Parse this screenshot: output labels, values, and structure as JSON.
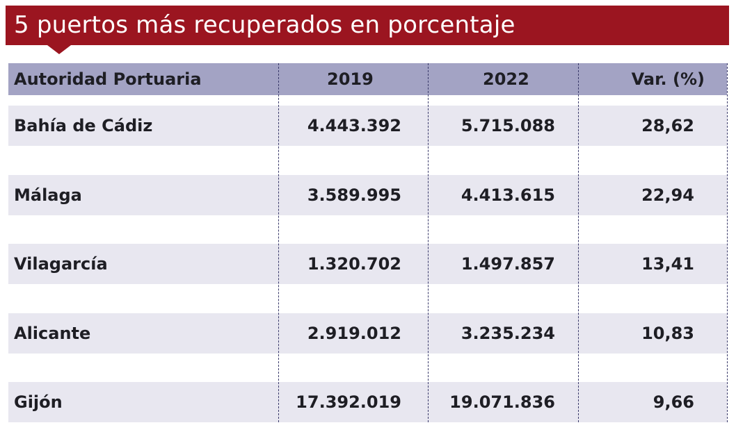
{
  "title": "5 puertos más recuperados en porcentaje",
  "colors": {
    "title_bar": "#9b1520",
    "header_bg": "#a3a3c4",
    "row_bg": "#e8e7f0"
  },
  "chart_data": {
    "type": "table",
    "title": "5 puertos más recuperados en porcentaje",
    "columns": [
      "Autoridad Portuaria",
      "2019",
      "2022",
      "Var. (%)"
    ],
    "rows": [
      [
        "Bahía de Cádiz",
        "4.443.392",
        "5.715.088",
        "28,62"
      ],
      [
        "Málaga",
        "3.589.995",
        "4.413.615",
        "22,94"
      ],
      [
        "Vilagarcía",
        "1.320.702",
        "1.497.857",
        "13,41"
      ],
      [
        "Alicante",
        "2.919.012",
        "3.235.234",
        "10,83"
      ],
      [
        "Gijón",
        "17.392.019",
        "19.071.836",
        "9,66"
      ]
    ]
  }
}
